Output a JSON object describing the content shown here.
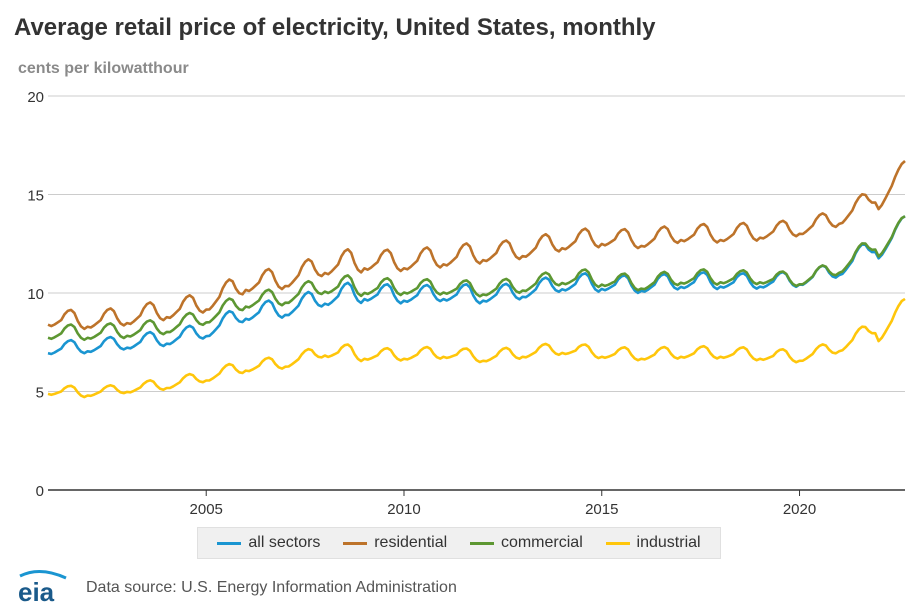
{
  "header": {
    "title": "Average retail price of electricity, United States, monthly",
    "subtitle": "cents per kilowatthour"
  },
  "footer": {
    "logo_text": "eia",
    "source": "Data source: U.S. Energy Information Administration"
  },
  "colors": {
    "all_sectors": "#1a95d1",
    "residential": "#bd732a",
    "commercial": "#5d9732",
    "industrial": "#ffc60b",
    "grid": "#cccccc",
    "axis": "#333333"
  },
  "chart_data": {
    "type": "line",
    "title": "Average retail price of electricity, United States, monthly",
    "ylabel": "cents per kilowatthour",
    "xlabel": "",
    "ylim": [
      0,
      20
    ],
    "xlim": [
      "2001-01",
      "2022-09"
    ],
    "x_ticks": [
      2005,
      2010,
      2015,
      2020
    ],
    "y_ticks": [
      0,
      5,
      10,
      15,
      20
    ],
    "grid": "horizontal",
    "legend_position": "bottom",
    "series": [
      {
        "name": "all sectors",
        "color_key": "all_sectors",
        "annual": [
          [
            2001,
            7.1,
            0.45
          ],
          [
            2002,
            7.2,
            0.45
          ],
          [
            2003,
            7.4,
            0.5
          ],
          [
            2004,
            7.6,
            0.5
          ],
          [
            2005,
            8.0,
            0.55
          ],
          [
            2006,
            8.9,
            0.6
          ],
          [
            2007,
            9.1,
            0.6
          ],
          [
            2008,
            9.7,
            0.7
          ],
          [
            2009,
            9.9,
            0.6
          ],
          [
            2010,
            9.8,
            0.55
          ],
          [
            2011,
            9.9,
            0.6
          ],
          [
            2012,
            9.8,
            0.55
          ],
          [
            2013,
            10.0,
            0.55
          ],
          [
            2014,
            10.4,
            0.6
          ],
          [
            2015,
            10.4,
            0.55
          ],
          [
            2016,
            10.3,
            0.55
          ],
          [
            2017,
            10.5,
            0.55
          ],
          [
            2018,
            10.5,
            0.5
          ],
          [
            2019,
            10.5,
            0.5
          ],
          [
            2020,
            10.6,
            0.5
          ],
          [
            2021,
            11.1,
            0.55
          ],
          [
            2022,
            12.5,
            0.4
          ]
        ],
        "end_value": 13.6
      },
      {
        "name": "residential",
        "color_key": "residential",
        "annual": [
          [
            2001,
            8.6,
            0.6
          ],
          [
            2002,
            8.5,
            0.6
          ],
          [
            2003,
            8.7,
            0.65
          ],
          [
            2004,
            9.0,
            0.65
          ],
          [
            2005,
            9.4,
            0.7
          ],
          [
            2006,
            10.4,
            0.7
          ],
          [
            2007,
            10.6,
            0.7
          ],
          [
            2008,
            11.3,
            0.8
          ],
          [
            2009,
            11.5,
            0.7
          ],
          [
            2010,
            11.5,
            0.7
          ],
          [
            2011,
            11.7,
            0.7
          ],
          [
            2012,
            11.9,
            0.65
          ],
          [
            2013,
            12.1,
            0.65
          ],
          [
            2014,
            12.5,
            0.65
          ],
          [
            2015,
            12.7,
            0.6
          ],
          [
            2016,
            12.6,
            0.6
          ],
          [
            2017,
            12.9,
            0.6
          ],
          [
            2018,
            12.9,
            0.6
          ],
          [
            2019,
            13.0,
            0.55
          ],
          [
            2020,
            13.2,
            0.55
          ],
          [
            2021,
            13.7,
            0.55
          ],
          [
            2022,
            15.0,
            0.4
          ]
        ],
        "end_value": 16.4
      },
      {
        "name": "commercial",
        "color_key": "commercial",
        "annual": [
          [
            2001,
            7.9,
            0.5
          ],
          [
            2002,
            7.9,
            0.5
          ],
          [
            2003,
            8.0,
            0.5
          ],
          [
            2004,
            8.2,
            0.5
          ],
          [
            2005,
            8.7,
            0.55
          ],
          [
            2006,
            9.5,
            0.55
          ],
          [
            2007,
            9.7,
            0.55
          ],
          [
            2008,
            10.3,
            0.65
          ],
          [
            2009,
            10.2,
            0.55
          ],
          [
            2010,
            10.2,
            0.5
          ],
          [
            2011,
            10.2,
            0.5
          ],
          [
            2012,
            10.1,
            0.5
          ],
          [
            2013,
            10.3,
            0.5
          ],
          [
            2014,
            10.7,
            0.55
          ],
          [
            2015,
            10.6,
            0.5
          ],
          [
            2016,
            10.4,
            0.5
          ],
          [
            2017,
            10.7,
            0.5
          ],
          [
            2018,
            10.7,
            0.45
          ],
          [
            2019,
            10.7,
            0.45
          ],
          [
            2020,
            10.6,
            0.45
          ],
          [
            2021,
            11.2,
            0.5
          ],
          [
            2022,
            12.6,
            0.4
          ]
        ],
        "end_value": 13.6
      },
      {
        "name": "industrial",
        "color_key": "industrial",
        "annual": [
          [
            2001,
            5.0,
            0.35
          ],
          [
            2002,
            4.9,
            0.3
          ],
          [
            2003,
            5.1,
            0.35
          ],
          [
            2004,
            5.3,
            0.35
          ],
          [
            2005,
            5.7,
            0.4
          ],
          [
            2006,
            6.2,
            0.4
          ],
          [
            2007,
            6.4,
            0.4
          ],
          [
            2008,
            7.0,
            0.5
          ],
          [
            2009,
            6.8,
            0.4
          ],
          [
            2010,
            6.8,
            0.4
          ],
          [
            2011,
            6.9,
            0.4
          ],
          [
            2012,
            6.7,
            0.4
          ],
          [
            2013,
            6.9,
            0.4
          ],
          [
            2014,
            7.1,
            0.4
          ],
          [
            2015,
            6.9,
            0.4
          ],
          [
            2016,
            6.8,
            0.4
          ],
          [
            2017,
            6.9,
            0.4
          ],
          [
            2018,
            6.9,
            0.4
          ],
          [
            2019,
            6.8,
            0.4
          ],
          [
            2020,
            6.7,
            0.4
          ],
          [
            2021,
            7.2,
            0.45
          ],
          [
            2022,
            8.3,
            0.4
          ]
        ],
        "end_value": 9.4
      }
    ]
  }
}
